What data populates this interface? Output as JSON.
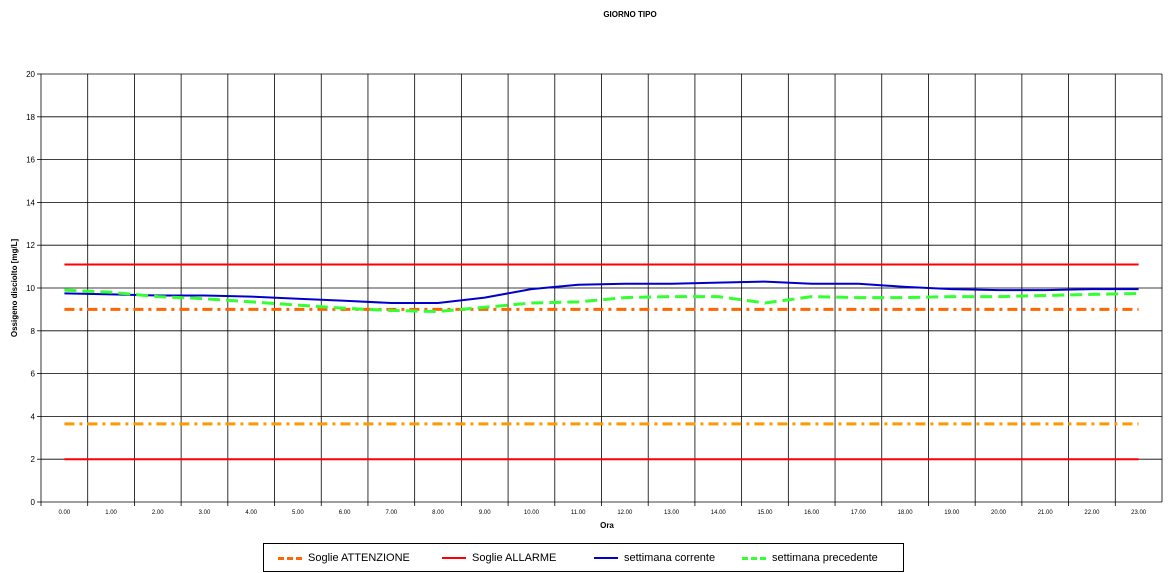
{
  "chart_data": {
    "type": "line",
    "title": "GIORNO TIPO",
    "xlabel": "Ora",
    "ylabel": "Ossigeno disciolto [mg/L]",
    "ylim": [
      0,
      20
    ],
    "yticks": [
      "0",
      "2",
      "4",
      "6",
      "8",
      "10",
      "12",
      "14",
      "16",
      "18",
      "20"
    ],
    "categories": [
      "0.00",
      "1.00",
      "2.00",
      "3.00",
      "4.00",
      "5.00",
      "6.00",
      "7.00",
      "8.00",
      "9.00",
      "10.00",
      "11.00",
      "12.00",
      "13.00",
      "14.00",
      "15.00",
      "16.00",
      "17.00",
      "18.00",
      "19.00",
      "20.00",
      "21.00",
      "22.00",
      "23.00"
    ],
    "grid": true,
    "legend_position": "bottom",
    "series": [
      {
        "name": "Soglie ATTENZIONE",
        "color": "#FF6600",
        "style": "dash-dot",
        "values": [
          9.0,
          9.0,
          9.0,
          9.0,
          9.0,
          9.0,
          9.0,
          9.0,
          9.0,
          9.0,
          9.0,
          9.0,
          9.0,
          9.0,
          9.0,
          9.0,
          9.0,
          9.0,
          9.0,
          9.0,
          9.0,
          9.0,
          9.0,
          9.0
        ]
      },
      {
        "name": "Soglie ATTENZIONE",
        "color": "#FF9900",
        "style": "dash-dot",
        "values": [
          3.65,
          3.65,
          3.65,
          3.65,
          3.65,
          3.65,
          3.65,
          3.65,
          3.65,
          3.65,
          3.65,
          3.65,
          3.65,
          3.65,
          3.65,
          3.65,
          3.65,
          3.65,
          3.65,
          3.65,
          3.65,
          3.65,
          3.65,
          3.65
        ]
      },
      {
        "name": "Soglie ALLARME",
        "color": "#FF0000",
        "style": "solid",
        "values": [
          11.1,
          11.1,
          11.1,
          11.1,
          11.1,
          11.1,
          11.1,
          11.1,
          11.1,
          11.1,
          11.1,
          11.1,
          11.1,
          11.1,
          11.1,
          11.1,
          11.1,
          11.1,
          11.1,
          11.1,
          11.1,
          11.1,
          11.1,
          11.1
        ]
      },
      {
        "name": "Soglie ALLARME",
        "color": "#FF0000",
        "style": "solid",
        "values": [
          2.0,
          2.0,
          2.0,
          2.0,
          2.0,
          2.0,
          2.0,
          2.0,
          2.0,
          2.0,
          2.0,
          2.0,
          2.0,
          2.0,
          2.0,
          2.0,
          2.0,
          2.0,
          2.0,
          2.0,
          2.0,
          2.0,
          2.0,
          2.0
        ]
      },
      {
        "name": "settimana corrente",
        "color": "#0000CC",
        "style": "solid",
        "values": [
          9.75,
          9.7,
          9.65,
          9.65,
          9.6,
          9.5,
          9.4,
          9.3,
          9.3,
          9.55,
          9.95,
          10.15,
          10.2,
          10.2,
          10.25,
          10.3,
          10.2,
          10.2,
          10.05,
          9.95,
          9.9,
          9.9,
          9.95,
          9.95
        ]
      },
      {
        "name": "settimana precedente",
        "color": "#33FF33",
        "style": "dash",
        "values": [
          9.9,
          9.8,
          9.6,
          9.5,
          9.35,
          9.2,
          9.05,
          8.95,
          8.9,
          9.1,
          9.3,
          9.35,
          9.55,
          9.6,
          9.6,
          9.3,
          9.6,
          9.55,
          9.55,
          9.6,
          9.6,
          9.65,
          9.7,
          9.75
        ]
      }
    ],
    "legend": [
      {
        "label": "Soglie ATTENZIONE",
        "color": "#FF6600",
        "style": "dash"
      },
      {
        "label": "Soglie ALLARME",
        "color": "#FF0000",
        "style": "solid"
      },
      {
        "label": "settimana corrente",
        "color": "#0000CC",
        "style": "solid"
      },
      {
        "label": "settimana precedente",
        "color": "#33FF33",
        "style": "dash"
      }
    ]
  }
}
